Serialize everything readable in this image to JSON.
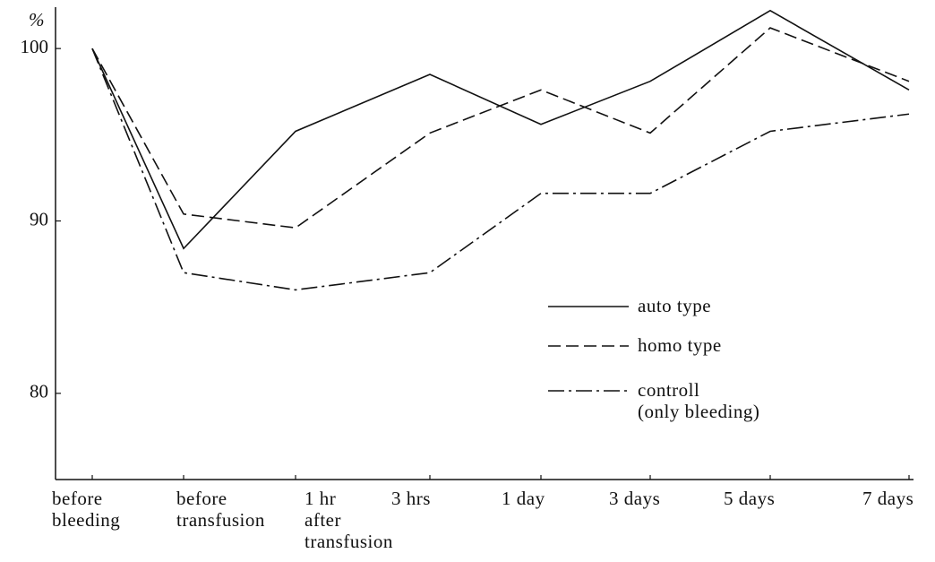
{
  "chart_data": {
    "type": "line",
    "y_unit_label": "%",
    "categories": [
      "before\nbleeding",
      "before\ntransfusion",
      "1 hr\nafter\ntransfusion",
      "3 hrs",
      "1 day",
      "3 days",
      "5 days",
      "7 days"
    ],
    "series": [
      {
        "name": "auto type",
        "color": "#111111",
        "dash": "solid",
        "values": [
          100,
          88.4,
          95.2,
          98.5,
          95.6,
          98.1,
          102.2,
          97.6
        ]
      },
      {
        "name": "homo type",
        "color": "#111111",
        "dash": "dashed",
        "values": [
          100,
          90.4,
          89.6,
          95.1,
          97.6,
          95.1,
          101.2,
          98.1
        ]
      },
      {
        "name": "controll\n(only bleeding)",
        "color": "#111111",
        "dash": "dashdot",
        "values": [
          100,
          87.0,
          86.0,
          87.0,
          91.6,
          91.6,
          95.2,
          96.2
        ]
      }
    ],
    "ylim": [
      75,
      102.4
    ],
    "yticks": [
      80,
      90,
      100
    ],
    "grid": false
  }
}
